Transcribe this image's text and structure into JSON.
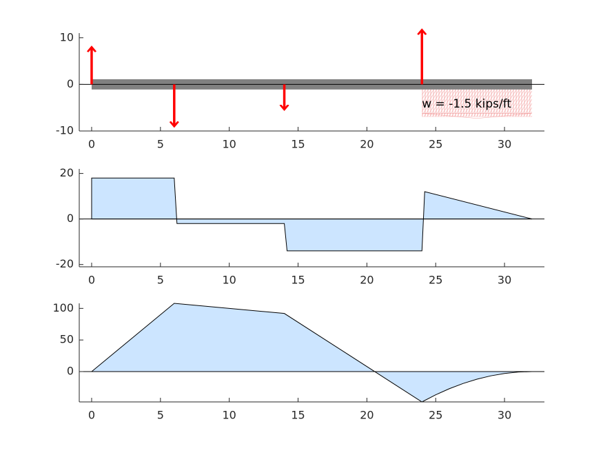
{
  "chart_data": [
    {
      "type": "beam",
      "xlim": [
        -0.9,
        32.9
      ],
      "ylim": [
        -10,
        11
      ],
      "xticks": [
        0,
        5,
        10,
        15,
        20,
        25,
        30
      ],
      "yticks": [
        -10,
        0,
        10
      ],
      "beam": {
        "x": [
          0,
          32
        ],
        "color": "#808080"
      },
      "loads": {
        "x": [
          0,
          6,
          14,
          24
        ],
        "values": [
          8,
          -9,
          -5.4,
          11.7
        ],
        "color": "#ff0000"
      },
      "distributed": {
        "x": [
          24,
          32
        ],
        "color": "#f4a6a6"
      },
      "annotation": "w = -1.5 kips/ft"
    },
    {
      "type": "area",
      "xlim": [
        -0.9,
        32.9
      ],
      "ylim": [
        -21,
        22
      ],
      "xticks": [
        0,
        5,
        10,
        15,
        20,
        25,
        30
      ],
      "yticks": [
        -20,
        0,
        20
      ],
      "x": [
        0,
        0,
        6,
        6.2,
        14,
        14.2,
        24,
        24.2,
        32
      ],
      "values": [
        0,
        18,
        18,
        -2,
        -2,
        -14,
        -14,
        12,
        0
      ],
      "color": "#cce5ff"
    },
    {
      "type": "area",
      "xlim": [
        -0.9,
        32.9
      ],
      "ylim": [
        -48,
        108
      ],
      "xticks": [
        0,
        5,
        10,
        15,
        20,
        25,
        30
      ],
      "yticks": [
        0,
        50,
        100
      ],
      "x": [
        0,
        6,
        14,
        24,
        25,
        26,
        27,
        28,
        29,
        30,
        31,
        32
      ],
      "values": [
        0,
        108,
        92,
        -48,
        -36.75,
        -27,
        -18.75,
        -12,
        -6.75,
        -3,
        -0.75,
        0
      ],
      "color": "#cce5ff"
    }
  ]
}
